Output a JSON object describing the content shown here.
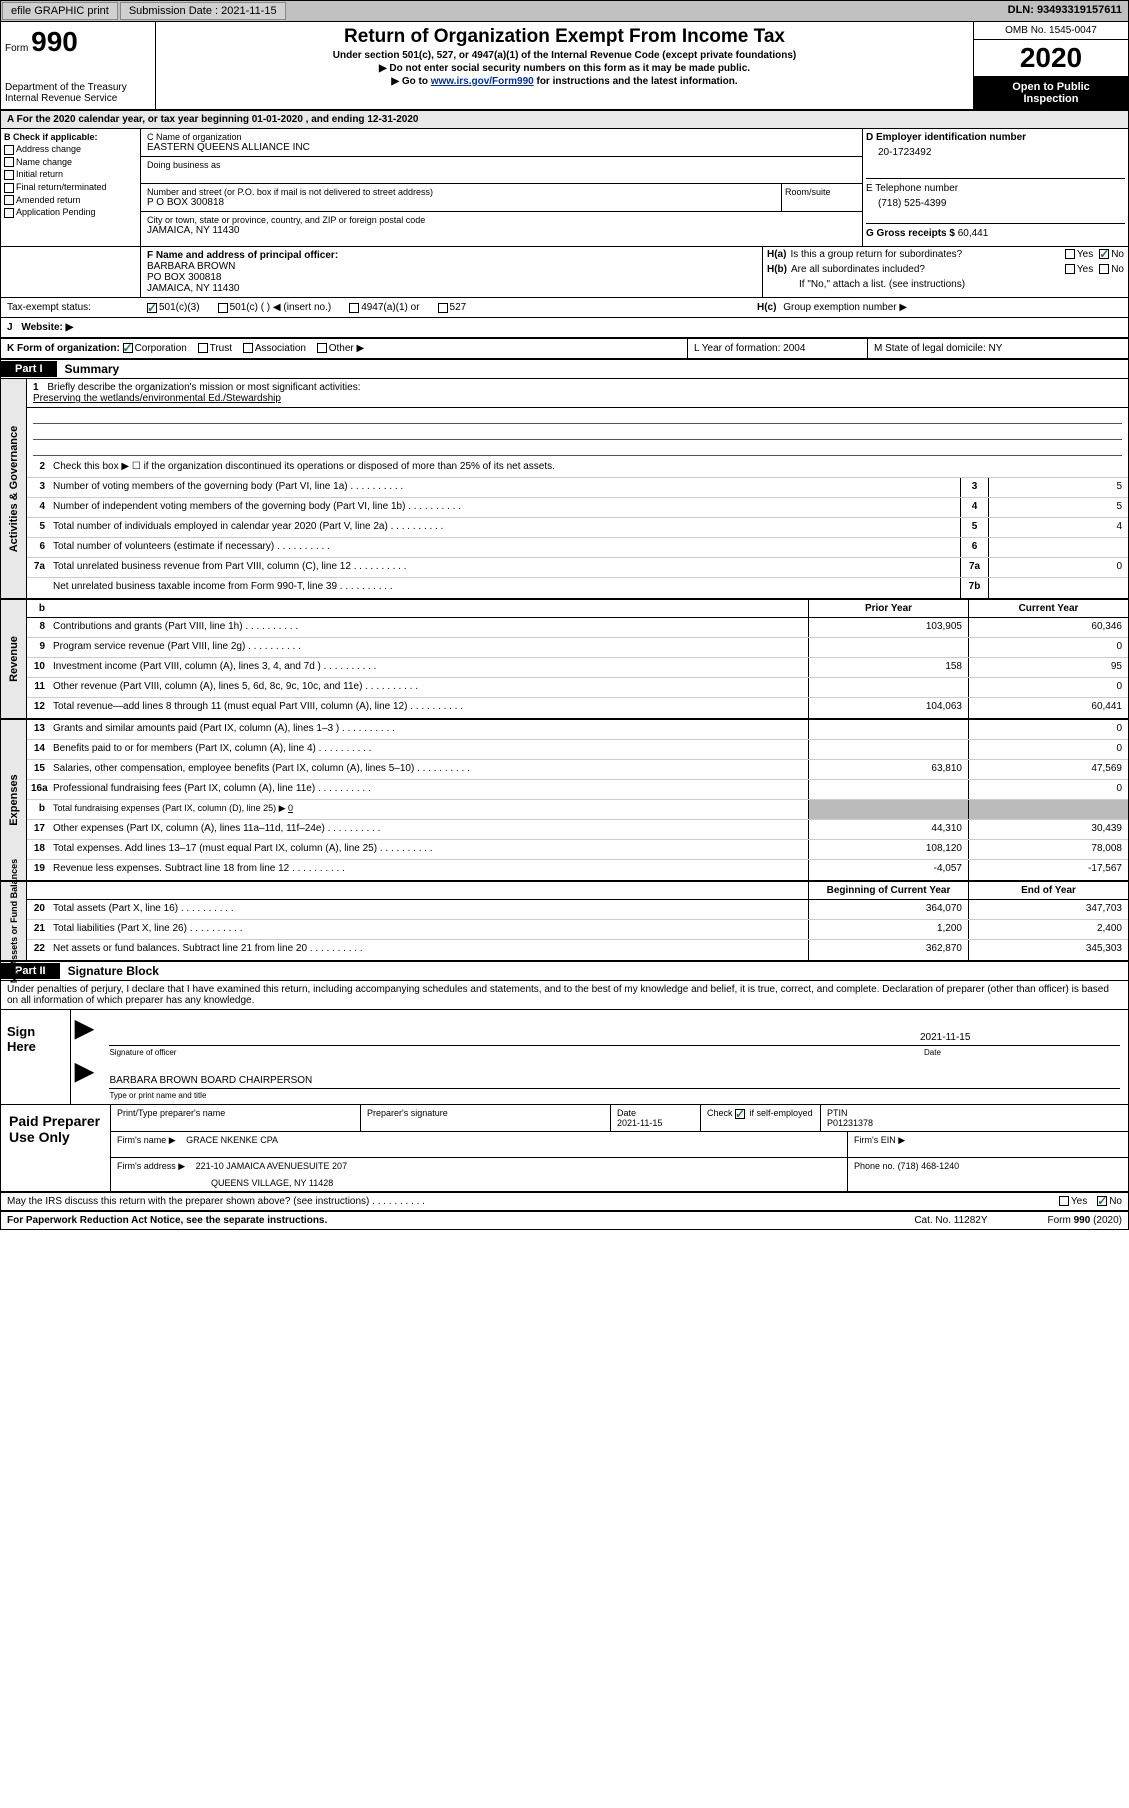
{
  "top": {
    "btn1": "efile GRAPHIC print",
    "sub_label": "Submission Date : 2021-11-15",
    "dln": "DLN: 93493319157611"
  },
  "header": {
    "form_word": "Form",
    "form_num": "990",
    "dept1": "Department of the Treasury",
    "dept2": "Internal Revenue Service",
    "title": "Return of Organization Exempt From Income Tax",
    "subtitle": "Under section 501(c), 527, or 4947(a)(1) of the Internal Revenue Code (except private foundations)",
    "instr1": "▶ Do not enter social security numbers on this form as it may be made public.",
    "instr2_pre": "▶ Go to ",
    "instr2_link": "www.irs.gov/Form990",
    "instr2_post": " for instructions and the latest information.",
    "omb": "OMB No. 1545-0047",
    "year": "2020",
    "inspect1": "Open to Public",
    "inspect2": "Inspection"
  },
  "period": "A   For the 2020 calendar year, or tax year beginning 01-01-2020   , and ending 12-31-2020",
  "sectionB": {
    "title": "B Check if applicable:",
    "items": [
      "Address change",
      "Name change",
      "Initial return",
      "Final return/terminated",
      "Amended return",
      "Application Pending"
    ]
  },
  "sectionC": {
    "name_lbl": "C Name of organization",
    "name": "EASTERN QUEENS ALLIANCE INC",
    "dba_lbl": "Doing business as",
    "street_lbl": "Number and street (or P.O. box if mail is not delivered to street address)",
    "room_lbl": "Room/suite",
    "street": "P O BOX 300818",
    "city_lbl": "City or town, state or province, country, and ZIP or foreign postal code",
    "city": "JAMAICA, NY  11430"
  },
  "sectionD": {
    "lbl": "D Employer identification number",
    "val": "20-1723492"
  },
  "sectionE": {
    "lbl": "E Telephone number",
    "val": "(718) 525-4399"
  },
  "sectionG": {
    "lbl": "G Gross receipts $",
    "val": "60,441"
  },
  "sectionF": {
    "lbl": "F  Name and address of principal officer:",
    "l1": "BARBARA BROWN",
    "l2": "PO BOX 300818",
    "l3": "JAMAICA, NY  11430"
  },
  "sectionH": {
    "a": "Is this a group return for subordinates?",
    "b": "Are all subordinates included?",
    "b_note": "If \"No,\" attach a list. (see instructions)",
    "c": "Group exemption number ▶",
    "yes": "Yes",
    "no": "No"
  },
  "taxexempt": {
    "lbl": "Tax-exempt status:",
    "o1": "501(c)(3)",
    "o2": "501(c) (  ) ◀ (insert no.)",
    "o3": "4947(a)(1) or",
    "o4": "527"
  },
  "website": {
    "j": "J",
    "lbl": "Website: ▶"
  },
  "orgform": {
    "k": "K Form of organization:",
    "o1": "Corporation",
    "o2": "Trust",
    "o3": "Association",
    "o4": "Other ▶",
    "l": "L Year of formation: 2004",
    "m": "M State of legal domicile: NY"
  },
  "part1": {
    "tab": "Part I",
    "title": "Summary"
  },
  "governance": {
    "label": "Activities & Governance",
    "l1_pre": "Briefly describe the organization's mission or most significant activities:",
    "l1_text": "Preserving the wetlands/environmental Ed./Stewardship",
    "l2": "Check this box ▶ ☐  if the organization discontinued its operations or disposed of more than 25% of its net assets.",
    "l3": "Number of voting members of the governing body (Part VI, line 1a)",
    "l4": "Number of independent voting members of the governing body (Part VI, line 1b)",
    "l5": "Total number of individuals employed in calendar year 2020 (Part V, line 2a)",
    "l6": "Total number of volunteers (estimate if necessary)",
    "l7a": "Total unrelated business revenue from Part VIII, column (C), line 12",
    "l7b": "Net unrelated business taxable income from Form 990-T, line 39",
    "v3": "5",
    "v4": "5",
    "v5": "4",
    "v6": "",
    "v7a": "0",
    "v7b": ""
  },
  "rev_headers": {
    "prior": "Prior Year",
    "current": "Current Year",
    "begin": "Beginning of Current Year",
    "end": "End of Year"
  },
  "revenue": {
    "label": "Revenue",
    "rows": [
      {
        "n": "8",
        "t": "Contributions and grants (Part VIII, line 1h)",
        "p": "103,905",
        "c": "60,346"
      },
      {
        "n": "9",
        "t": "Program service revenue (Part VIII, line 2g)",
        "p": "",
        "c": "0"
      },
      {
        "n": "10",
        "t": "Investment income (Part VIII, column (A), lines 3, 4, and 7d )",
        "p": "158",
        "c": "95"
      },
      {
        "n": "11",
        "t": "Other revenue (Part VIII, column (A), lines 5, 6d, 8c, 9c, 10c, and 11e)",
        "p": "",
        "c": "0"
      },
      {
        "n": "12",
        "t": "Total revenue—add lines 8 through 11 (must equal Part VIII, column (A), line 12)",
        "p": "104,063",
        "c": "60,441"
      }
    ]
  },
  "expenses": {
    "label": "Expenses",
    "rows": [
      {
        "n": "13",
        "t": "Grants and similar amounts paid (Part IX, column (A), lines 1–3 )",
        "p": "",
        "c": "0"
      },
      {
        "n": "14",
        "t": "Benefits paid to or for members (Part IX, column (A), line 4)",
        "p": "",
        "c": "0"
      },
      {
        "n": "15",
        "t": "Salaries, other compensation, employee benefits (Part IX, column (A), lines 5–10)",
        "p": "63,810",
        "c": "47,569"
      },
      {
        "n": "16a",
        "t": "Professional fundraising fees (Part IX, column (A), line 11e)",
        "p": "",
        "c": "0"
      }
    ],
    "l16b": "Total fundraising expenses (Part IX, column (D), line 25) ▶",
    "l16b_val": "0",
    "rows2": [
      {
        "n": "17",
        "t": "Other expenses (Part IX, column (A), lines 11a–11d, 11f–24e)",
        "p": "44,310",
        "c": "30,439"
      },
      {
        "n": "18",
        "t": "Total expenses. Add lines 13–17 (must equal Part IX, column (A), line 25)",
        "p": "108,120",
        "c": "78,008"
      },
      {
        "n": "19",
        "t": "Revenue less expenses. Subtract line 18 from line 12",
        "p": "-4,057",
        "c": "-17,567"
      }
    ]
  },
  "netassets": {
    "label": "Net Assets or Fund Balances",
    "rows": [
      {
        "n": "20",
        "t": "Total assets (Part X, line 16)",
        "p": "364,070",
        "c": "347,703"
      },
      {
        "n": "21",
        "t": "Total liabilities (Part X, line 26)",
        "p": "1,200",
        "c": "2,400"
      },
      {
        "n": "22",
        "t": "Net assets or fund balances. Subtract line 21 from line 20",
        "p": "362,870",
        "c": "345,303"
      }
    ]
  },
  "part2": {
    "tab": "Part II",
    "title": "Signature Block"
  },
  "sig": {
    "intro": "Under penalties of perjury, I declare that I have examined this return, including accompanying schedules and statements, and to the best of my knowledge and belief, it is true, correct, and complete. Declaration of preparer (other than officer) is based on all information of which preparer has any knowledge.",
    "here": "Sign Here",
    "officer_lbl": "Signature of officer",
    "date_lbl": "Date",
    "date": "2021-11-15",
    "name": "BARBARA BROWN  BOARD CHAIRPERSON",
    "name_lbl": "Type or print name and title"
  },
  "paid": {
    "label": "Paid Preparer Use Only",
    "h1": "Print/Type preparer's name",
    "h2": "Preparer's signature",
    "h3": "Date",
    "h3v": "2021-11-15",
    "h4_pre": "Check",
    "h4_post": "if self-employed",
    "h5": "PTIN",
    "h5v": "P01231378",
    "firm_lbl": "Firm's name    ▶",
    "firm": "GRACE NKENKE CPA",
    "ein_lbl": "Firm's EIN ▶",
    "addr_lbl": "Firm's address ▶",
    "addr1": "221-10 JAMAICA AVENUESUITE 207",
    "addr2": "QUEENS VILLAGE, NY  11428",
    "phone_lbl": "Phone no.",
    "phone": "(718) 468-1240"
  },
  "discuss": {
    "text": "May the IRS discuss this return with the preparer shown above? (see instructions)",
    "yes": "Yes",
    "no": "No"
  },
  "footer": {
    "left": "For Paperwork Reduction Act Notice, see the separate instructions.",
    "mid": "Cat. No. 11282Y",
    "right": "Form 990 (2020)"
  },
  "colors": {
    "topbar_bg": "#c0c0c0",
    "check_green": "#2a7a3a",
    "shaded": "#bbbbbb"
  }
}
